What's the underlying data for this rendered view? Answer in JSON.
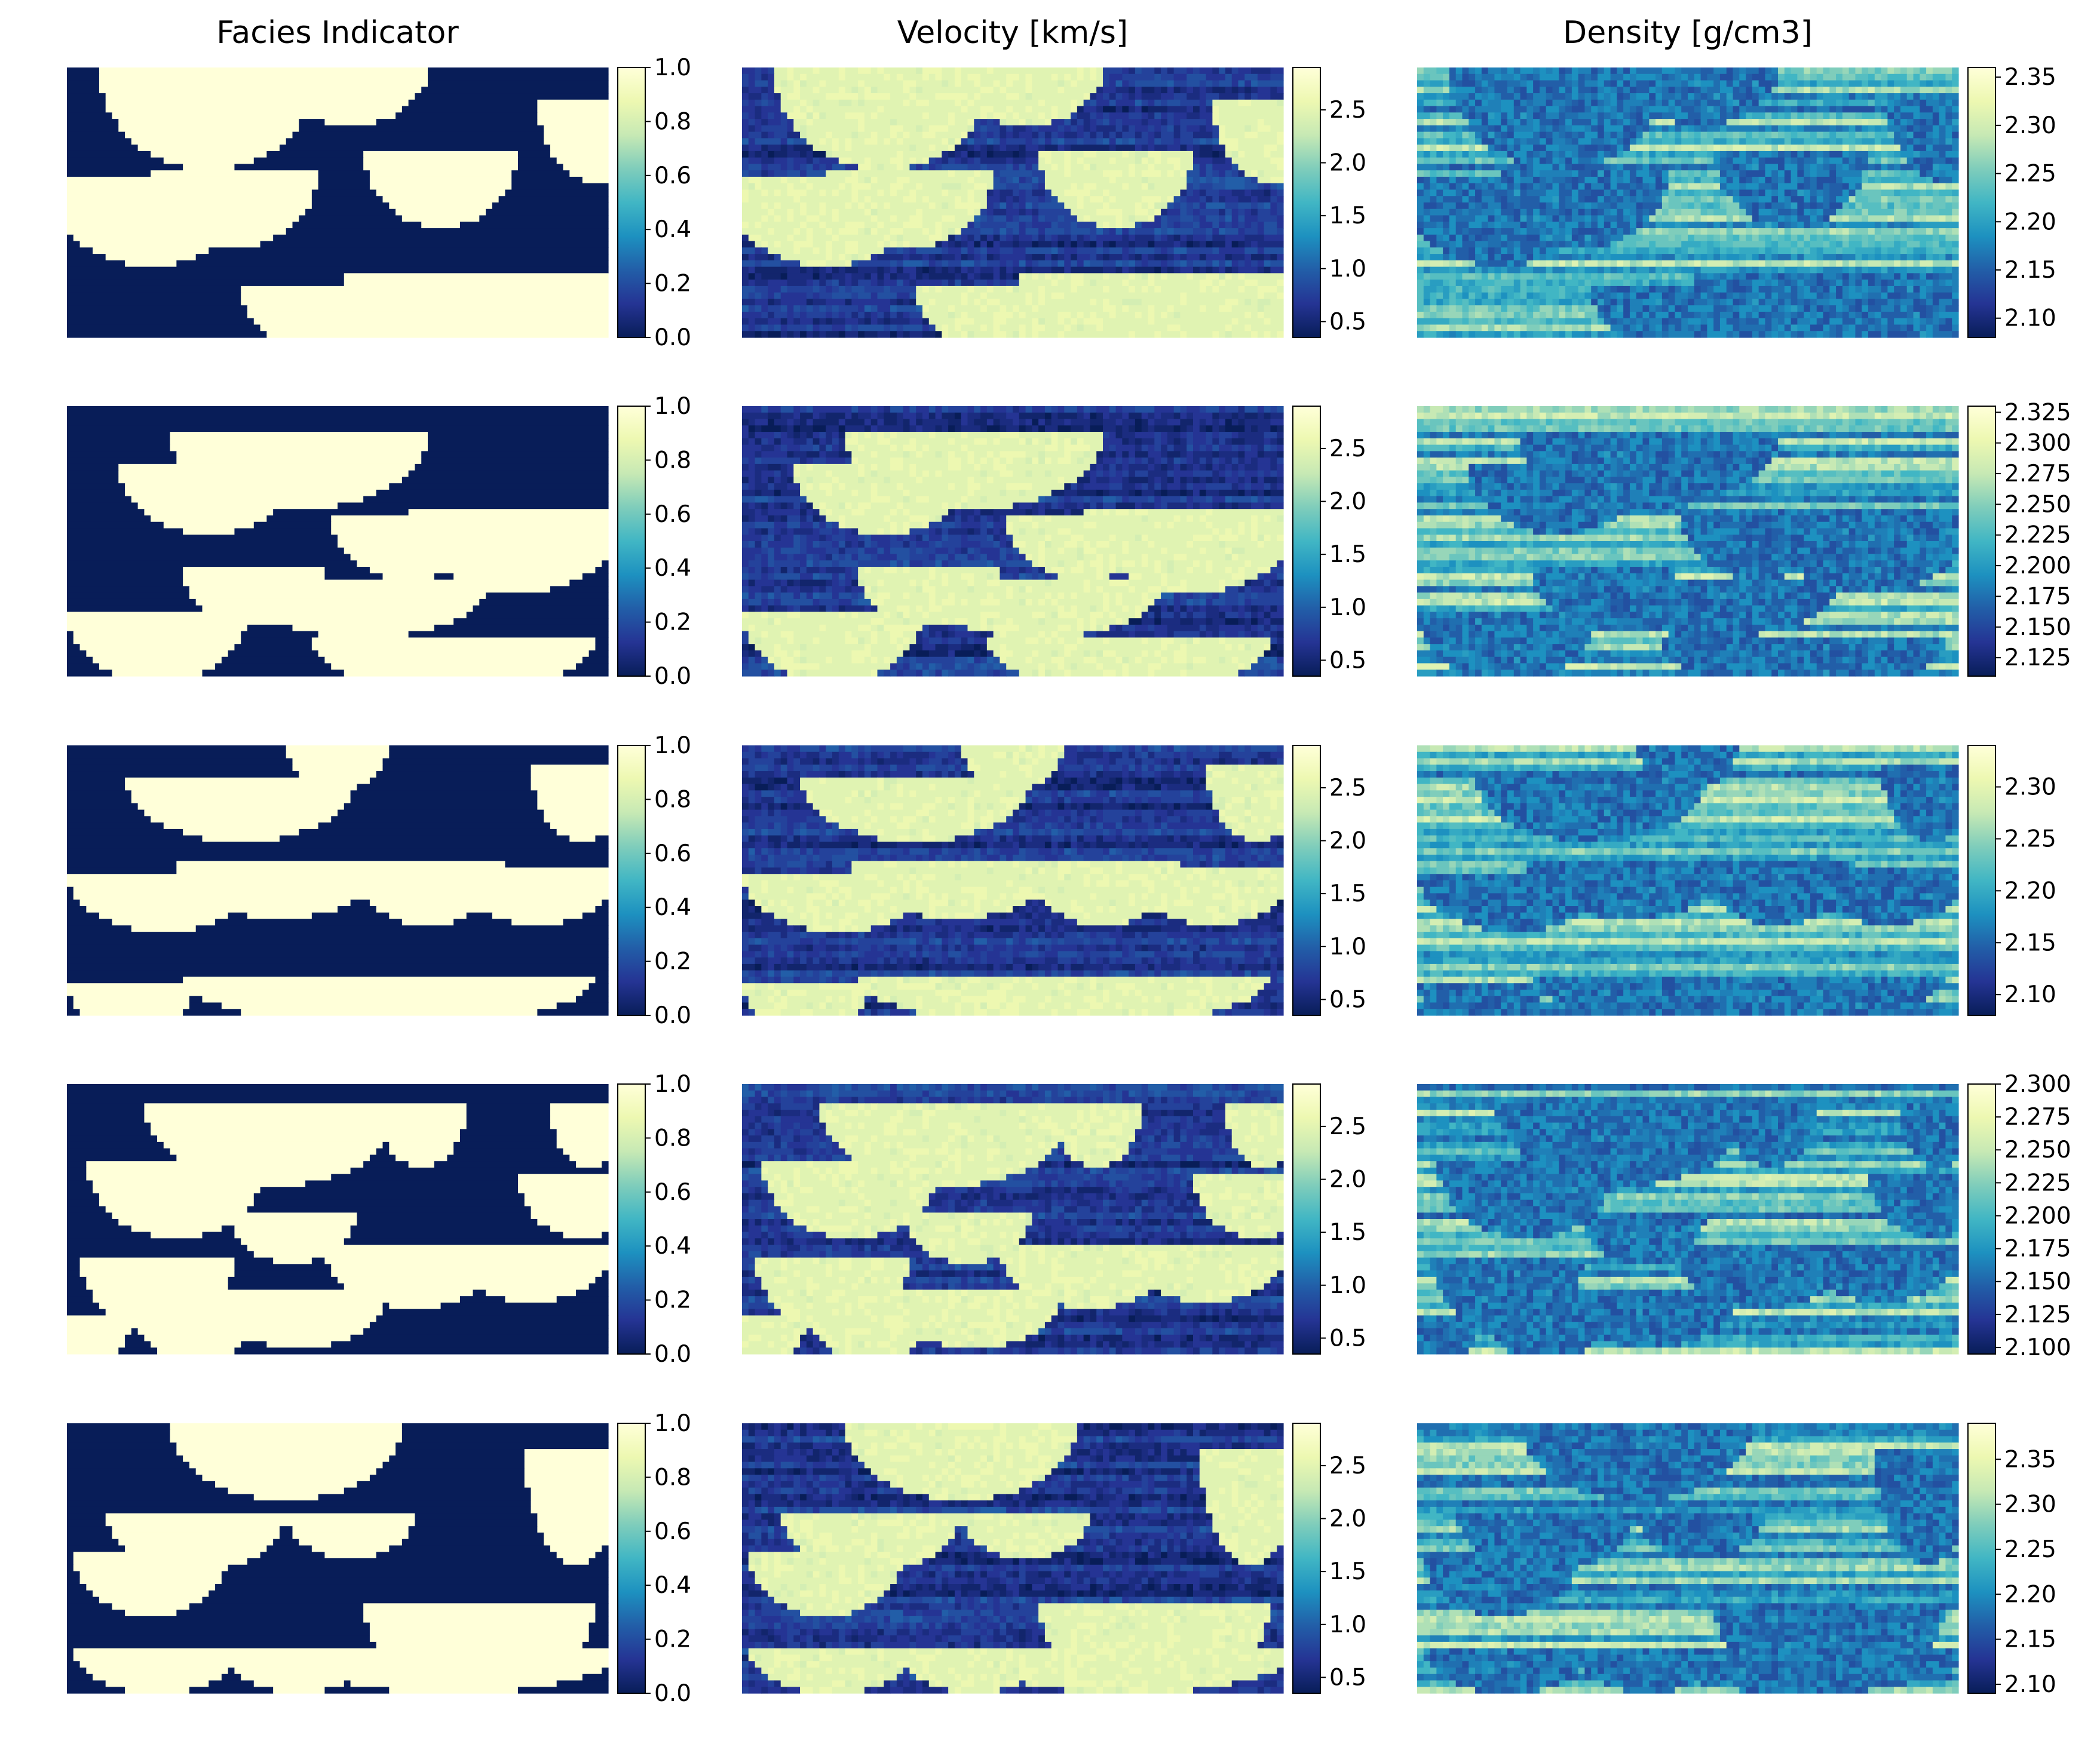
{
  "colormap": {
    "name": "YlGnBu",
    "stops": [
      "#081d58",
      "#253494",
      "#225ea8",
      "#1d91c0",
      "#41b6c4",
      "#7fcdbb",
      "#c7e9b4",
      "#edf8b1",
      "#ffffd9"
    ]
  },
  "chart_data": {
    "type": "heatmap",
    "columns": [
      {
        "key": "facies",
        "title": "Facies Indicator"
      },
      {
        "key": "velocity",
        "title": "Velocity [km/s]"
      },
      {
        "key": "density",
        "title": "Density [g/cm3]"
      }
    ],
    "panels": [
      {
        "row": 1,
        "column": "facies",
        "vmin": 0.0,
        "vmax": 1.0,
        "ticks": [
          "0.0",
          "0.2",
          "0.4",
          "0.6",
          "0.8",
          "1.0"
        ]
      },
      {
        "row": 1,
        "column": "velocity",
        "vmin": 0.35,
        "vmax": 2.9,
        "ticks": [
          "0.5",
          "1.0",
          "1.5",
          "2.0",
          "2.5"
        ]
      },
      {
        "row": 1,
        "column": "density",
        "vmin": 2.08,
        "vmax": 2.36,
        "ticks": [
          "2.10",
          "2.15",
          "2.20",
          "2.25",
          "2.30",
          "2.35"
        ]
      },
      {
        "row": 2,
        "column": "facies",
        "vmin": 0.0,
        "vmax": 1.0,
        "ticks": [
          "0.0",
          "0.2",
          "0.4",
          "0.6",
          "0.8",
          "1.0"
        ]
      },
      {
        "row": 2,
        "column": "velocity",
        "vmin": 0.35,
        "vmax": 2.9,
        "ticks": [
          "0.5",
          "1.0",
          "1.5",
          "2.0",
          "2.5"
        ]
      },
      {
        "row": 2,
        "column": "density",
        "vmin": 2.11,
        "vmax": 2.33,
        "ticks": [
          "2.125",
          "2.150",
          "2.175",
          "2.200",
          "2.225",
          "2.250",
          "2.275",
          "2.300",
          "2.325"
        ]
      },
      {
        "row": 3,
        "column": "facies",
        "vmin": 0.0,
        "vmax": 1.0,
        "ticks": [
          "0.0",
          "0.2",
          "0.4",
          "0.6",
          "0.8",
          "1.0"
        ]
      },
      {
        "row": 3,
        "column": "velocity",
        "vmin": 0.35,
        "vmax": 2.9,
        "ticks": [
          "0.5",
          "1.0",
          "1.5",
          "2.0",
          "2.5"
        ]
      },
      {
        "row": 3,
        "column": "density",
        "vmin": 2.08,
        "vmax": 2.34,
        "ticks": [
          "2.10",
          "2.15",
          "2.20",
          "2.25",
          "2.30"
        ]
      },
      {
        "row": 4,
        "column": "facies",
        "vmin": 0.0,
        "vmax": 1.0,
        "ticks": [
          "0.0",
          "0.2",
          "0.4",
          "0.6",
          "0.8",
          "1.0"
        ]
      },
      {
        "row": 4,
        "column": "velocity",
        "vmin": 0.35,
        "vmax": 2.9,
        "ticks": [
          "0.5",
          "1.0",
          "1.5",
          "2.0",
          "2.5"
        ]
      },
      {
        "row": 4,
        "column": "density",
        "vmin": 2.095,
        "vmax": 2.3,
        "ticks": [
          "2.100",
          "2.125",
          "2.150",
          "2.175",
          "2.200",
          "2.225",
          "2.250",
          "2.275",
          "2.300"
        ]
      },
      {
        "row": 5,
        "column": "facies",
        "vmin": 0.0,
        "vmax": 1.0,
        "ticks": [
          "0.0",
          "0.2",
          "0.4",
          "0.6",
          "0.8",
          "1.0"
        ]
      },
      {
        "row": 5,
        "column": "velocity",
        "vmin": 0.35,
        "vmax": 2.9,
        "ticks": [
          "0.5",
          "1.0",
          "1.5",
          "2.0",
          "2.5"
        ]
      },
      {
        "row": 5,
        "column": "density",
        "vmin": 2.09,
        "vmax": 2.39,
        "ticks": [
          "2.10",
          "2.15",
          "2.20",
          "2.25",
          "2.30",
          "2.35"
        ]
      }
    ]
  }
}
